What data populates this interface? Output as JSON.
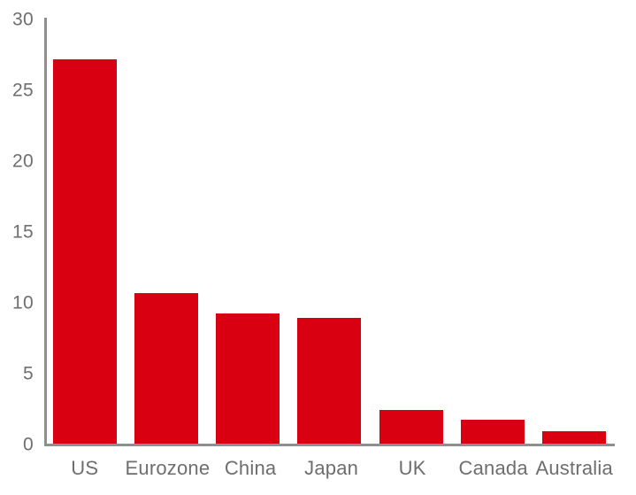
{
  "chart_data": {
    "type": "bar",
    "categories": [
      "US",
      "Eurozone",
      "China",
      "Japan",
      "UK",
      "Canada",
      "Australia"
    ],
    "values": [
      27.1,
      10.6,
      9.2,
      8.9,
      2.4,
      1.7,
      0.9
    ],
    "title": "",
    "xlabel": "",
    "ylabel": "",
    "ylim": [
      0,
      30
    ],
    "yticks": [
      0,
      5,
      10,
      15,
      20,
      25,
      30
    ],
    "grid": false,
    "legend": false,
    "bar_color": "#d90012",
    "axis_color": "#8f8f8f",
    "label_color": "#6e6e6e"
  }
}
